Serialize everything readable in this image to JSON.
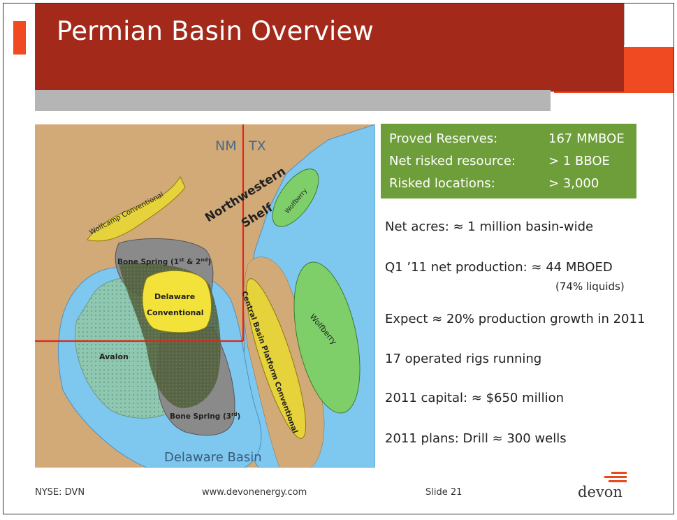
{
  "slide": {
    "title": "Permian Basin Overview"
  },
  "map": {
    "state_left": "NM",
    "state_right": "TX",
    "regions": {
      "northwestern_line1": "Northwestern",
      "northwestern_line2": "Shelf",
      "wolfcamp": "Wolfcamp Conventional",
      "wolfberry_top": "Wolfberry",
      "wolfberry_right": "Wolfberry",
      "bone_spring_12": "Bone Spring (1",
      "bone_spring_12_sup1": "st",
      "bone_spring_12_mid": " & 2",
      "bone_spring_12_sup2": "nd",
      "bone_spring_12_end": ")",
      "delaware_conv_line1": "Delaware",
      "delaware_conv_line2": "Conventional",
      "avalon": "Avalon",
      "central_basin": "Central Basin Platform Conventional",
      "bone_spring_3": "Bone Spring (3",
      "bone_spring_3_sup": "rd",
      "bone_spring_3_end": ")",
      "delaware_basin": "Delaware Basin"
    }
  },
  "stats": [
    {
      "label": "Proved Reserves:",
      "value": "167 MMBOE"
    },
    {
      "label": "Net risked resource:",
      "value": "> 1 BBOE"
    },
    {
      "label": "Risked locations:",
      "value": "> 3,000"
    }
  ],
  "bullets": {
    "net_acres": "Net acres: ≈ 1 million basin-wide",
    "production": "Q1 ’11 net production: ≈ 44 MBOED",
    "production_sub": "(74% liquids)",
    "growth": "Expect ≈ 20% production growth in 2011",
    "rigs": "17 operated rigs running",
    "capital": "2011 capital: ≈ $650 million",
    "plans": "2011 plans: Drill ≈ 300 wells"
  },
  "footer": {
    "ticker": "NYSE: DVN",
    "website": "www.devonenergy.com",
    "slide_number": "Slide 21"
  },
  "logo": {
    "text": "devon"
  },
  "colors": {
    "title_bar": "#a32a1a",
    "accent_orange": "#f04a23",
    "stats_green": "#6e9e3a",
    "map_land": "#d2aa78",
    "map_water": "#7ec8f0"
  }
}
